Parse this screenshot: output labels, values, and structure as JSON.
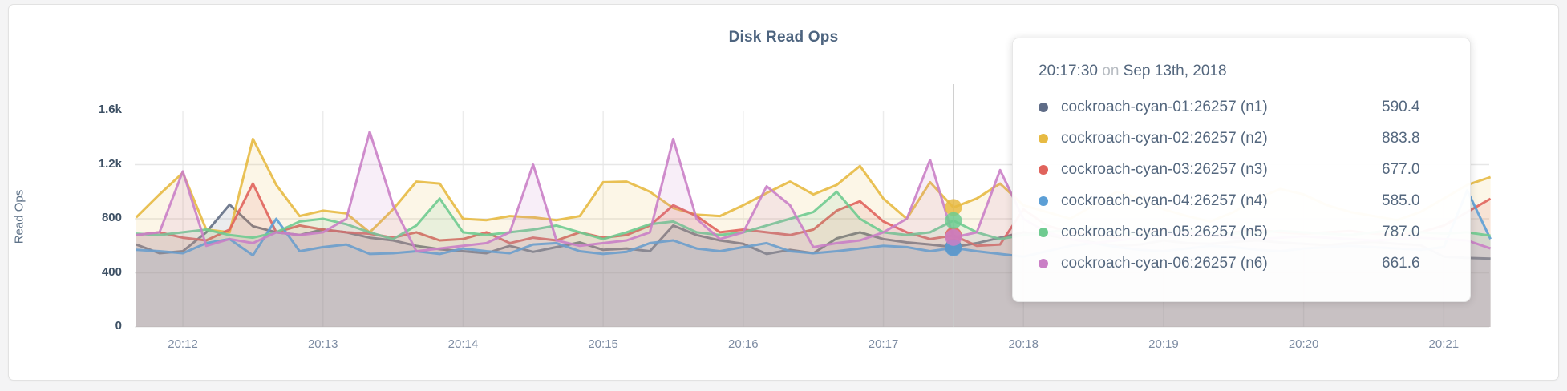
{
  "panel": {
    "title": "Disk Read Ops"
  },
  "y_axis": {
    "label": "Read Ops"
  },
  "tooltip": {
    "time": "20:17:30",
    "on_word": "on",
    "date": "Sep 13th, 2018",
    "rows": [
      {
        "label": "cockroach-cyan-01:26257 (n1)",
        "value": "590.4",
        "color": "#5f6c87"
      },
      {
        "label": "cockroach-cyan-02:26257 (n2)",
        "value": "883.8",
        "color": "#e7ba42"
      },
      {
        "label": "cockroach-cyan-03:26257 (n3)",
        "value": "677.0",
        "color": "#e0635c"
      },
      {
        "label": "cockroach-cyan-04:26257 (n4)",
        "value": "585.0",
        "color": "#5c9fd6"
      },
      {
        "label": "cockroach-cyan-05:26257 (n5)",
        "value": "787.0",
        "color": "#6fcb90"
      },
      {
        "label": "cockroach-cyan-06:26257 (n6)",
        "value": "661.6",
        "color": "#ca7fc6"
      }
    ]
  },
  "chart_data": {
    "type": "area",
    "title": "Disk Read Ops",
    "ylabel": "Read Ops",
    "ylim": [
      0,
      1600
    ],
    "grid": true,
    "x_start": "20:11:40",
    "x_step_seconds": 10,
    "x_ticks": [
      {
        "t": 12,
        "label": "20:12"
      },
      {
        "t": 13,
        "label": "20:13"
      },
      {
        "t": 14,
        "label": "20:14"
      },
      {
        "t": 15,
        "label": "20:15"
      },
      {
        "t": 16,
        "label": "20:16"
      },
      {
        "t": 17,
        "label": "20:17"
      },
      {
        "t": 18,
        "label": "20:18"
      },
      {
        "t": 19,
        "label": "20:19"
      },
      {
        "t": 20,
        "label": "20:20"
      },
      {
        "t": 21,
        "label": "20:21"
      }
    ],
    "y_ticks": [
      {
        "v": 0,
        "label": "0",
        "gridline": false
      },
      {
        "v": 400,
        "label": "400",
        "gridline": true
      },
      {
        "v": 800,
        "label": "800",
        "gridline": true
      },
      {
        "v": 1200,
        "label": "1.2k",
        "gridline": true
      },
      {
        "v": 1600,
        "label": "1.6k",
        "gridline": false
      }
    ],
    "hover": {
      "index": 35,
      "time": "20:17:30"
    },
    "series": [
      {
        "name": "cockroach-cyan-01:26257 (n1)",
        "color": "#636f85",
        "values": [
          610,
          545,
          560,
          700,
          905,
          745,
          700,
          680,
          720,
          700,
          660,
          640,
          600,
          575,
          560,
          545,
          600,
          555,
          590,
          625,
          570,
          580,
          560,
          750,
          680,
          640,
          615,
          540,
          570,
          545,
          655,
          700,
          650,
          625,
          610,
          590.4,
          620,
          660,
          700,
          680,
          650,
          625,
          600,
          610,
          640,
          620,
          615,
          630,
          640,
          625,
          615,
          605,
          620,
          630,
          615,
          605,
          520,
          510,
          505
        ]
      },
      {
        "name": "cockroach-cyan-02:26257 (n2)",
        "color": "#e7ba42",
        "values": [
          810,
          980,
          1140,
          720,
          700,
          1390,
          1050,
          820,
          860,
          840,
          700,
          870,
          1075,
          1060,
          800,
          790,
          820,
          810,
          790,
          820,
          1070,
          1075,
          1000,
          880,
          830,
          820,
          900,
          990,
          1075,
          980,
          1050,
          1190,
          950,
          800,
          1070,
          883.8,
          950,
          1060,
          900,
          850,
          800,
          900,
          1000,
          950,
          870,
          820,
          780,
          850,
          950,
          1020,
          980,
          900,
          850,
          820,
          790,
          850,
          950,
          1050,
          1108
        ]
      },
      {
        "name": "cockroach-cyan-03:26257 (n3)",
        "color": "#e0635c",
        "values": [
          680,
          700,
          660,
          640,
          720,
          1060,
          700,
          750,
          720,
          700,
          690,
          660,
          700,
          640,
          650,
          700,
          620,
          660,
          640,
          700,
          660,
          680,
          750,
          900,
          820,
          700,
          720,
          700,
          680,
          720,
          860,
          930,
          780,
          700,
          650,
          677,
          600,
          610,
          870,
          750,
          700,
          680,
          660,
          700,
          720,
          690,
          670,
          700,
          720,
          700,
          690,
          700,
          710,
          690,
          680,
          700,
          750,
          850,
          948
        ]
      },
      {
        "name": "cockroach-cyan-04:26257 (n4)",
        "color": "#5c9fd6",
        "values": [
          570,
          560,
          545,
          620,
          650,
          530,
          800,
          560,
          590,
          610,
          540,
          545,
          560,
          540,
          580,
          560,
          545,
          610,
          620,
          560,
          540,
          555,
          620,
          640,
          580,
          560,
          590,
          620,
          560,
          545,
          560,
          580,
          600,
          590,
          560,
          585,
          560,
          540,
          520,
          560,
          600,
          620,
          590,
          570,
          560,
          580,
          600,
          590,
          570,
          560,
          580,
          590,
          600,
          590,
          580,
          570,
          590,
          1010,
          650
        ]
      },
      {
        "name": "cockroach-cyan-05:26257 (n5)",
        "color": "#6fcb90",
        "values": [
          690,
          680,
          700,
          720,
          680,
          660,
          700,
          780,
          800,
          760,
          700,
          650,
          750,
          950,
          700,
          680,
          700,
          720,
          750,
          700,
          650,
          700,
          760,
          780,
          700,
          680,
          700,
          750,
          800,
          850,
          1000,
          800,
          700,
          680,
          700,
          787,
          700,
          650,
          680,
          700,
          720,
          740,
          700,
          680,
          700,
          720,
          700,
          690,
          700,
          710,
          700,
          690,
          680,
          700,
          720,
          700,
          690,
          700,
          675
        ]
      },
      {
        "name": "cockroach-cyan-06:26257 (n6)",
        "color": "#ca7fc6",
        "values": [
          680,
          700,
          1150,
          600,
          650,
          620,
          700,
          680,
          700,
          800,
          1443,
          900,
          560,
          580,
          600,
          620,
          700,
          1200,
          640,
          600,
          620,
          640,
          700,
          1390,
          800,
          650,
          700,
          1040,
          900,
          590,
          620,
          640,
          700,
          800,
          1235,
          661.6,
          700,
          1160,
          800,
          700,
          650,
          620,
          640,
          660,
          680,
          700,
          680,
          660,
          650,
          660,
          670,
          660,
          650,
          640,
          650,
          660,
          650,
          640,
          580
        ]
      }
    ]
  }
}
